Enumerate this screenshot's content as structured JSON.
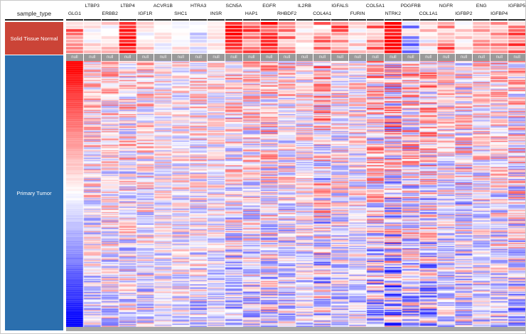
{
  "header": {
    "sample_type_label": "sample_type"
  },
  "null_label": "null",
  "chart_data": {
    "type": "heatmap",
    "title": "",
    "xlabel": "",
    "ylabel": "sample_type",
    "legend_position": "none",
    "grid": false,
    "seed": 1337,
    "color_scale": {
      "min_color": "#0000ff",
      "mid_color": "#ffffff",
      "max_color": "#ff0000",
      "domain": [
        -1,
        0,
        1
      ]
    },
    "row_groups": [
      {
        "name": "Solid Tissue Normal",
        "color": "#cb4437",
        "rows": 9
      },
      {
        "name": "Primary Tumor",
        "color": "#2b6fae",
        "rows": 250
      }
    ],
    "sorted_by_column": "GLG1",
    "columns": [
      {
        "gene": "GLG1",
        "label_row": "bottom",
        "normal_bias": 0.45,
        "normal_noise": 0.5,
        "tumor_top": 1.05,
        "tumor_bottom": -1.05,
        "tumor_noise": 0.05
      },
      {
        "gene": "LTBP3",
        "label_row": "top",
        "normal_bias": 0.08,
        "normal_noise": 0.25,
        "tumor_top": 0.2,
        "tumor_bottom": -0.15,
        "tumor_noise": 0.5
      },
      {
        "gene": "ERBB2",
        "label_row": "bottom",
        "normal_bias": 0.18,
        "normal_noise": 0.3,
        "tumor_top": 0.15,
        "tumor_bottom": -0.1,
        "tumor_noise": 0.5
      },
      {
        "gene": "LTBP4",
        "label_row": "top",
        "normal_bias": 0.9,
        "normal_noise": 0.15,
        "tumor_top": 0.15,
        "tumor_bottom": -0.15,
        "tumor_noise": 0.55
      },
      {
        "gene": "IGF1R",
        "label_row": "bottom",
        "normal_bias": 0.25,
        "normal_noise": 0.35,
        "tumor_top": 0.2,
        "tumor_bottom": -0.1,
        "tumor_noise": 0.5
      },
      {
        "gene": "ACVR1B",
        "label_row": "top",
        "normal_bias": 0.02,
        "normal_noise": 0.15,
        "tumor_top": 0.1,
        "tumor_bottom": -0.1,
        "tumor_noise": 0.4
      },
      {
        "gene": "SHC1",
        "label_row": "bottom",
        "normal_bias": 0.1,
        "normal_noise": 0.2,
        "tumor_top": 0.1,
        "tumor_bottom": -0.05,
        "tumor_noise": 0.45
      },
      {
        "gene": "HTRA3",
        "label_row": "top",
        "normal_bias": -0.05,
        "normal_noise": 0.25,
        "tumor_top": 0.15,
        "tumor_bottom": -0.15,
        "tumor_noise": 0.5
      },
      {
        "gene": "INSR",
        "label_row": "bottom",
        "normal_bias": 0.05,
        "normal_noise": 0.15,
        "tumor_top": 0.1,
        "tumor_bottom": -0.1,
        "tumor_noise": 0.4
      },
      {
        "gene": "SCN5A",
        "label_row": "top",
        "normal_bias": 0.85,
        "normal_noise": 0.2,
        "tumor_top": 0.2,
        "tumor_bottom": -0.2,
        "tumor_noise": 0.55
      },
      {
        "gene": "HAP1",
        "label_row": "bottom",
        "normal_bias": 0.55,
        "normal_noise": 0.4,
        "tumor_top": 0.15,
        "tumor_bottom": -0.15,
        "tumor_noise": 0.55
      },
      {
        "gene": "EGFR",
        "label_row": "top",
        "normal_bias": 0.8,
        "normal_noise": 0.25,
        "tumor_top": 0.2,
        "tumor_bottom": -0.15,
        "tumor_noise": 0.6
      },
      {
        "gene": "RHBDF2",
        "label_row": "bottom",
        "normal_bias": 0.5,
        "normal_noise": 0.4,
        "tumor_top": 0.15,
        "tumor_bottom": -0.2,
        "tumor_noise": 0.55
      },
      {
        "gene": "IL2RB",
        "label_row": "top",
        "normal_bias": 0.1,
        "normal_noise": 0.2,
        "tumor_top": 0.1,
        "tumor_bottom": -0.1,
        "tumor_noise": 0.45
      },
      {
        "gene": "COL4A1",
        "label_row": "bottom",
        "normal_bias": 0.35,
        "normal_noise": 0.45,
        "tumor_top": 0.3,
        "tumor_bottom": -0.2,
        "tumor_noise": 0.7
      },
      {
        "gene": "IGFALS",
        "label_row": "top",
        "normal_bias": 0.5,
        "normal_noise": 0.4,
        "tumor_top": 0.1,
        "tumor_bottom": -0.15,
        "tumor_noise": 0.5
      },
      {
        "gene": "FURIN",
        "label_row": "bottom",
        "normal_bias": 0.15,
        "normal_noise": 0.25,
        "tumor_top": 0.1,
        "tumor_bottom": -0.1,
        "tumor_noise": 0.5
      },
      {
        "gene": "COL5A1",
        "label_row": "top",
        "normal_bias": 0.45,
        "normal_noise": 0.45,
        "tumor_top": 0.3,
        "tumor_bottom": -0.25,
        "tumor_noise": 0.7
      },
      {
        "gene": "NTRK2",
        "label_row": "bottom",
        "normal_bias": 0.95,
        "normal_noise": 0.1,
        "tumor_top": 0.25,
        "tumor_bottom": -0.3,
        "tumor_noise": 0.8
      },
      {
        "gene": "PDGFRB",
        "label_row": "top",
        "normal_bias": -0.25,
        "normal_noise": 0.45,
        "tumor_top": 0.25,
        "tumor_bottom": -0.2,
        "tumor_noise": 0.65
      },
      {
        "gene": "COL1A1",
        "label_row": "bottom",
        "normal_bias": 0.1,
        "normal_noise": 0.25,
        "tumor_top": 0.3,
        "tumor_bottom": -0.25,
        "tumor_noise": 0.7
      },
      {
        "gene": "NGFR",
        "label_row": "top",
        "normal_bias": 0.45,
        "normal_noise": 0.4,
        "tumor_top": 0.1,
        "tumor_bottom": -0.15,
        "tumor_noise": 0.5
      },
      {
        "gene": "IGFBP2",
        "label_row": "bottom",
        "normal_bias": 0.1,
        "normal_noise": 0.25,
        "tumor_top": 0.15,
        "tumor_bottom": -0.15,
        "tumor_noise": 0.6
      },
      {
        "gene": "ENG",
        "label_row": "top",
        "normal_bias": 0.25,
        "normal_noise": 0.3,
        "tumor_top": 0.15,
        "tumor_bottom": -0.1,
        "tumor_noise": 0.5
      },
      {
        "gene": "IGFBP4",
        "label_row": "bottom",
        "normal_bias": 0.3,
        "normal_noise": 0.3,
        "tumor_top": 0.2,
        "tumor_bottom": -0.15,
        "tumor_noise": 0.55
      },
      {
        "gene": "IGFBP5",
        "label_row": "top",
        "normal_bias": 0.5,
        "normal_noise": 0.4,
        "tumor_top": 0.2,
        "tumor_bottom": -0.2,
        "tumor_noise": 0.65
      }
    ]
  }
}
